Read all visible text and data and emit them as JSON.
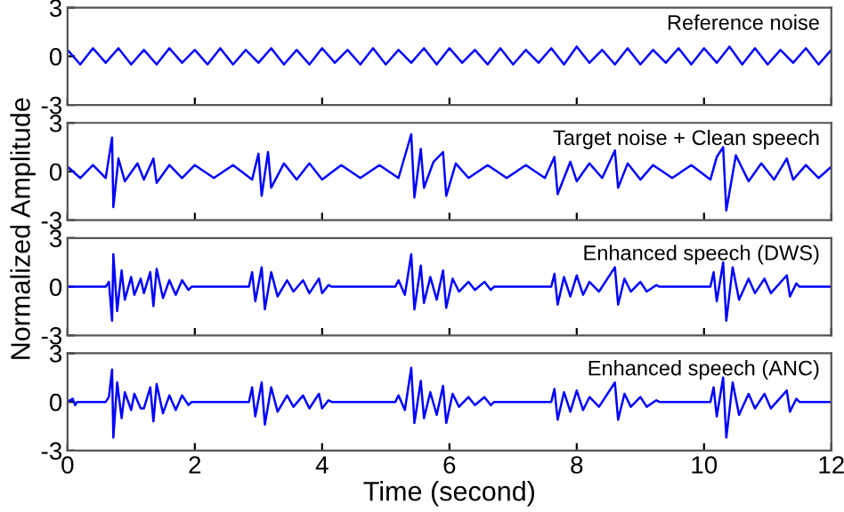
{
  "chart_data": [
    {
      "type": "line",
      "title": "Reference noise",
      "ylabel": "Normalized Amplitude",
      "xlim": [
        0,
        12
      ],
      "ylim": [
        -3,
        3
      ],
      "xticks": [
        0,
        2,
        4,
        6,
        8,
        10,
        12
      ],
      "yticks": [
        -3,
        0,
        3
      ],
      "tick_labels": "y",
      "series": [
        {
          "color": "#0000ff",
          "x": [
            0,
            0.2,
            0.4,
            0.6,
            0.8,
            1.0,
            1.2,
            1.4,
            1.6,
            1.8,
            2.0,
            2.2,
            2.4,
            2.6,
            2.8,
            3.0,
            3.2,
            3.4,
            3.6,
            3.8,
            4.0,
            4.2,
            4.4,
            4.6,
            4.8,
            5.0,
            5.2,
            5.4,
            5.6,
            5.8,
            6.0,
            6.2,
            6.4,
            6.6,
            6.8,
            7.0,
            7.2,
            7.4,
            7.6,
            7.8,
            8.0,
            8.2,
            8.4,
            8.6,
            8.8,
            9.0,
            9.2,
            9.4,
            9.6,
            9.8,
            10.0,
            10.2,
            10.4,
            10.6,
            10.8,
            11.0,
            11.2,
            11.4,
            11.6,
            11.8,
            12.0
          ],
          "values": [
            0.4,
            -0.5,
            0.5,
            -0.4,
            0.5,
            -0.5,
            0.4,
            -0.5,
            0.5,
            -0.4,
            0.4,
            -0.5,
            0.5,
            -0.5,
            0.4,
            -0.4,
            0.5,
            -0.5,
            0.4,
            -0.5,
            0.5,
            -0.4,
            0.4,
            -0.5,
            0.5,
            -0.5,
            0.4,
            -0.4,
            0.5,
            -0.5,
            0.5,
            -0.4,
            0.4,
            -0.5,
            0.5,
            -0.5,
            0.4,
            -0.4,
            0.5,
            -0.5,
            0.6,
            -0.4,
            0.4,
            -0.5,
            0.5,
            -0.5,
            0.4,
            -0.4,
            0.5,
            -0.5,
            0.5,
            -0.4,
            0.6,
            -0.5,
            0.5,
            -0.5,
            0.4,
            -0.4,
            0.5,
            -0.5,
            0.4
          ]
        }
      ]
    },
    {
      "type": "line",
      "title": "Target noise + Clean speech",
      "xlim": [
        0,
        12
      ],
      "ylim": [
        -3,
        3
      ],
      "xticks": [
        0,
        2,
        4,
        6,
        8,
        10,
        12
      ],
      "yticks": [
        -3,
        0,
        3
      ],
      "tick_labels": "y",
      "series": [
        {
          "color": "#0000ff",
          "x": [
            0,
            0.2,
            0.4,
            0.6,
            0.7,
            0.72,
            0.8,
            0.9,
            1.1,
            1.2,
            1.35,
            1.4,
            1.6,
            1.8,
            2.0,
            2.3,
            2.6,
            2.9,
            3.0,
            3.05,
            3.15,
            3.2,
            3.4,
            3.6,
            3.8,
            4.0,
            4.3,
            4.6,
            4.9,
            5.2,
            5.4,
            5.45,
            5.55,
            5.6,
            5.75,
            5.9,
            5.95,
            6.1,
            6.3,
            6.6,
            6.9,
            7.2,
            7.5,
            7.65,
            7.7,
            7.9,
            8.0,
            8.2,
            8.4,
            8.6,
            8.65,
            8.8,
            9.0,
            9.2,
            9.5,
            9.8,
            10.1,
            10.2,
            10.3,
            10.35,
            10.5,
            10.7,
            10.9,
            11.1,
            11.3,
            11.4,
            11.6,
            11.8,
            12.0
          ],
          "values": [
            0.3,
            -0.4,
            0.4,
            -0.4,
            2.1,
            -2.2,
            0.8,
            -0.6,
            0.5,
            -0.5,
            0.8,
            -0.7,
            0.4,
            -0.4,
            0.4,
            -0.4,
            0.4,
            -0.5,
            1.1,
            -1.5,
            1.2,
            -1.0,
            0.5,
            -0.5,
            0.5,
            -0.5,
            0.4,
            -0.4,
            0.4,
            -0.4,
            2.3,
            -1.6,
            1.4,
            -1.0,
            0.6,
            1.2,
            -1.5,
            0.5,
            -0.4,
            0.4,
            -0.4,
            0.4,
            -0.4,
            0.9,
            -1.4,
            0.6,
            -0.6,
            0.5,
            -0.4,
            1.3,
            -1.0,
            0.5,
            -0.5,
            0.4,
            -0.4,
            0.4,
            -0.5,
            0.9,
            1.5,
            -2.4,
            1.0,
            -0.6,
            0.5,
            -0.5,
            0.8,
            -0.5,
            0.4,
            -0.4,
            0.3
          ]
        }
      ]
    },
    {
      "type": "line",
      "title": "Enhanced speech (DWS)",
      "xlim": [
        0,
        12
      ],
      "ylim": [
        -3,
        3
      ],
      "xticks": [
        0,
        2,
        4,
        6,
        8,
        10,
        12
      ],
      "yticks": [
        -3,
        0,
        3
      ],
      "tick_labels": "y",
      "series": [
        {
          "color": "#0000ff",
          "x": [
            0,
            0.6,
            0.65,
            0.7,
            0.72,
            0.78,
            0.85,
            0.9,
            1.0,
            1.05,
            1.15,
            1.2,
            1.3,
            1.35,
            1.4,
            1.5,
            1.6,
            1.7,
            1.8,
            1.9,
            1.95,
            2.85,
            2.9,
            2.95,
            3.05,
            3.1,
            3.2,
            3.3,
            3.45,
            3.55,
            3.7,
            3.8,
            3.95,
            4.0,
            4.1,
            4.15,
            5.15,
            5.2,
            5.3,
            5.4,
            5.45,
            5.55,
            5.6,
            5.7,
            5.8,
            5.9,
            5.95,
            6.05,
            6.15,
            6.3,
            6.4,
            6.55,
            6.65,
            6.7,
            7.6,
            7.65,
            7.7,
            7.8,
            7.9,
            8.0,
            8.1,
            8.2,
            8.35,
            8.6,
            8.65,
            8.75,
            8.85,
            9.0,
            9.1,
            9.25,
            9.3,
            10.1,
            10.15,
            10.2,
            10.3,
            10.35,
            10.45,
            10.55,
            10.7,
            10.8,
            10.95,
            11.05,
            11.3,
            11.35,
            11.45,
            11.5,
            12.0
          ],
          "values": [
            0,
            0,
            0.3,
            -2.1,
            2.0,
            -1.5,
            1.0,
            -0.8,
            0.6,
            -0.5,
            0.5,
            -0.4,
            0.9,
            -1.2,
            1.1,
            -0.7,
            0.4,
            -0.5,
            0.4,
            -0.2,
            0,
            0,
            0.9,
            -0.9,
            1.2,
            -1.4,
            0.9,
            -0.6,
            0.4,
            -0.3,
            0.4,
            -0.4,
            0.5,
            -0.4,
            0.1,
            0,
            0,
            0.4,
            -0.5,
            2.0,
            -1.4,
            1.3,
            -1.0,
            0.6,
            -0.8,
            1.0,
            -1.3,
            0.5,
            -0.3,
            0.3,
            -0.2,
            0.3,
            -0.2,
            0,
            0,
            0.8,
            -1.1,
            0.6,
            -0.6,
            0.7,
            -0.5,
            0.3,
            -0.3,
            1.2,
            -1.1,
            0.5,
            -0.3,
            0.3,
            -0.3,
            0.1,
            0,
            0,
            0.9,
            -0.9,
            1.5,
            -2.1,
            1.2,
            -0.8,
            0.5,
            -0.4,
            0.5,
            -0.4,
            0.7,
            -0.6,
            0.2,
            0,
            0
          ]
        }
      ]
    },
    {
      "type": "line",
      "title": "Enhanced speech (ANC)",
      "xlabel": "Time (second)",
      "xlim": [
        0,
        12
      ],
      "ylim": [
        -3,
        3
      ],
      "xticks": [
        0,
        2,
        4,
        6,
        8,
        10,
        12
      ],
      "yticks": [
        -3,
        0,
        3
      ],
      "series": [
        {
          "color": "#0000ff",
          "x": [
            0,
            0.08,
            0.12,
            0.15,
            0.6,
            0.65,
            0.7,
            0.72,
            0.78,
            0.85,
            0.9,
            1.0,
            1.05,
            1.15,
            1.2,
            1.3,
            1.35,
            1.4,
            1.5,
            1.6,
            1.7,
            1.8,
            1.9,
            1.95,
            2.85,
            2.9,
            2.95,
            3.05,
            3.1,
            3.2,
            3.3,
            3.45,
            3.55,
            3.7,
            3.8,
            3.95,
            4.0,
            4.1,
            4.15,
            5.15,
            5.2,
            5.3,
            5.4,
            5.45,
            5.55,
            5.6,
            5.7,
            5.8,
            5.9,
            5.95,
            6.05,
            6.15,
            6.3,
            6.4,
            6.55,
            6.65,
            6.7,
            7.6,
            7.65,
            7.7,
            7.8,
            7.9,
            8.0,
            8.1,
            8.2,
            8.35,
            8.6,
            8.65,
            8.75,
            8.85,
            9.0,
            9.1,
            9.25,
            9.3,
            10.1,
            10.15,
            10.2,
            10.3,
            10.35,
            10.45,
            10.55,
            10.7,
            10.8,
            10.95,
            11.05,
            11.3,
            11.35,
            11.45,
            11.5,
            12.0
          ],
          "values": [
            0,
            0.2,
            -0.2,
            0,
            0,
            0.3,
            2.0,
            -2.2,
            1.2,
            -1.0,
            0.6,
            -0.5,
            0.5,
            -0.4,
            -0.4,
            0.9,
            -1.2,
            1.1,
            -0.7,
            0.4,
            -0.5,
            0.4,
            -0.2,
            0,
            0,
            0.9,
            -0.9,
            1.2,
            -1.4,
            0.9,
            -0.6,
            0.4,
            -0.3,
            0.4,
            -0.4,
            0.5,
            -0.4,
            0.1,
            0,
            0,
            0.4,
            -0.5,
            2.1,
            -1.3,
            1.3,
            -1.0,
            0.6,
            -0.8,
            1.0,
            -1.3,
            0.5,
            -0.3,
            0.3,
            -0.2,
            0.3,
            -0.2,
            0,
            0,
            0.8,
            -1.1,
            0.6,
            -0.6,
            0.7,
            -0.5,
            0.3,
            -0.3,
            1.2,
            -1.1,
            0.5,
            -0.3,
            0.3,
            -0.3,
            0.1,
            0,
            0,
            0.9,
            -0.9,
            1.5,
            -2.2,
            1.2,
            -0.8,
            0.5,
            -0.4,
            0.5,
            -0.4,
            0.7,
            -0.6,
            0.2,
            0,
            0
          ]
        }
      ]
    }
  ]
}
